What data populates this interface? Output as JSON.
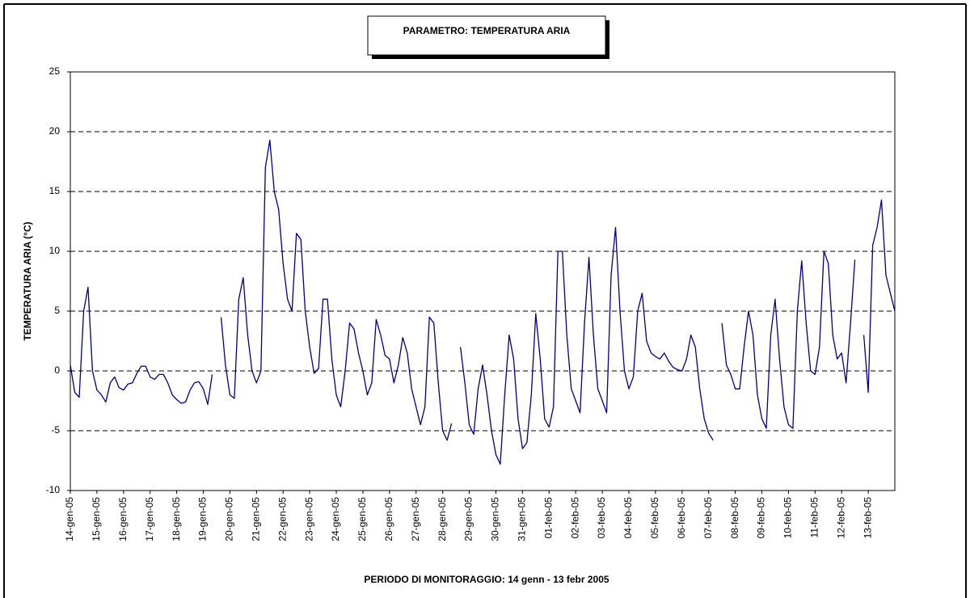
{
  "chart_data": {
    "type": "line",
    "title": "PARAMETRO: TEMPERATURA ARIA",
    "x_label": "PERIODO DI MONITORAGGIO: 14 genn - 13 febr 2005",
    "y_label": "TEMPERATURA ARIA (°C)",
    "color": "#000080",
    "grid": true,
    "ylim": [
      -10,
      25
    ],
    "yticks": [
      -10,
      -5,
      0,
      5,
      10,
      15,
      20,
      25
    ],
    "categories": [
      "14-gen-05",
      null,
      null,
      null,
      null,
      null,
      "15-gen-05",
      null,
      null,
      null,
      null,
      null,
      "16-gen-05",
      null,
      null,
      null,
      null,
      null,
      "17-gen-05",
      null,
      null,
      null,
      null,
      null,
      "18-gen-05",
      null,
      null,
      null,
      null,
      null,
      "19-gen-05",
      null,
      null,
      null,
      null,
      null,
      "20-gen-05",
      null,
      null,
      null,
      null,
      null,
      "21-gen-05",
      null,
      null,
      null,
      null,
      null,
      "22-gen-05",
      null,
      null,
      null,
      null,
      null,
      "23-gen-05",
      null,
      null,
      null,
      null,
      null,
      "24-gen-05",
      null,
      null,
      null,
      null,
      null,
      "25-gen-05",
      null,
      null,
      null,
      null,
      null,
      "26-gen-05",
      null,
      null,
      null,
      null,
      null,
      "27-gen-05",
      null,
      null,
      null,
      null,
      null,
      "28-gen-05",
      null,
      null,
      null,
      null,
      null,
      "29-gen-05",
      null,
      null,
      null,
      null,
      null,
      "30-gen-05",
      null,
      null,
      null,
      null,
      null,
      "31-gen-05",
      null,
      null,
      null,
      null,
      null,
      "01-feb-05",
      null,
      null,
      null,
      null,
      null,
      "02-feb-05",
      null,
      null,
      null,
      null,
      null,
      "03-feb-05",
      null,
      null,
      null,
      null,
      null,
      "04-feb-05",
      null,
      null,
      null,
      null,
      null,
      "05-feb-05",
      null,
      null,
      null,
      null,
      null,
      "06-feb-05",
      null,
      null,
      null,
      null,
      null,
      "07-feb-05",
      null,
      null,
      null,
      null,
      null,
      "08-feb-05",
      null,
      null,
      null,
      null,
      null,
      "09-feb-05",
      null,
      null,
      null,
      null,
      null,
      "10-feb-05",
      null,
      null,
      null,
      null,
      null,
      "11-feb-05",
      null,
      null,
      null,
      null,
      null,
      "12-feb-05",
      null,
      null,
      null,
      null,
      null,
      "13-feb-05",
      null,
      null,
      null,
      null,
      null,
      null
    ],
    "values": [
      0.5,
      -1.8,
      -2.2,
      5,
      7,
      0,
      -1.6,
      -2,
      -2.6,
      -1,
      -0.5,
      -1.4,
      -1.6,
      -1.1,
      -1,
      -0.2,
      0.4,
      0.4,
      -0.5,
      -0.7,
      -0.3,
      -0.3,
      -1,
      -2,
      -2.4,
      -2.7,
      -2.6,
      -1.6,
      -1,
      -0.9,
      -1.5,
      -2.8,
      -0.3,
      null,
      4.5,
      0.5,
      -2,
      -2.3,
      6,
      7.8,
      3,
      0,
      -1,
      0,
      17,
      19.3,
      15,
      13.5,
      9,
      6,
      5,
      11.5,
      11,
      5,
      2,
      -0.2,
      0.2,
      6,
      6,
      1,
      -2,
      -3,
      0,
      4,
      3.5,
      1.5,
      0,
      -2,
      -1,
      4.3,
      3,
      1.3,
      1,
      -1,
      0.5,
      2.8,
      1.5,
      -1.5,
      -3,
      -4.5,
      -3,
      4.5,
      4,
      -1,
      -5,
      -5.8,
      -4.4,
      null,
      2,
      -1,
      -4.5,
      -5.3,
      -1.5,
      0.5,
      -2,
      -5,
      -7,
      -7.8,
      -2,
      3,
      1,
      -4,
      -6.5,
      -6,
      -2,
      4.8,
      1,
      -4,
      -4.7,
      -3,
      10,
      10,
      3,
      -1.5,
      -2.5,
      -3.5,
      4,
      9.5,
      3,
      -1.5,
      -2.5,
      -3.5,
      8,
      12,
      5,
      0,
      -1.5,
      -0.5,
      5,
      6.5,
      2.5,
      1.5,
      1.2,
      1,
      1.5,
      0.8,
      0.3,
      0.1,
      0,
      1,
      3,
      2,
      -1.5,
      -4,
      -5.2,
      -5.8,
      null,
      4,
      0.5,
      -0.3,
      -1.5,
      -1.5,
      2,
      5,
      3,
      -2,
      -4,
      -4.8,
      3,
      6,
      1,
      -3,
      -4.5,
      -4.8,
      5,
      9.2,
      4,
      0,
      -0.3,
      2,
      10,
      9,
      3,
      1,
      1.5,
      -1,
      4,
      9.3,
      null,
      3,
      -1.8,
      10.5,
      12,
      14.3,
      8,
      6.5,
      5
    ]
  }
}
